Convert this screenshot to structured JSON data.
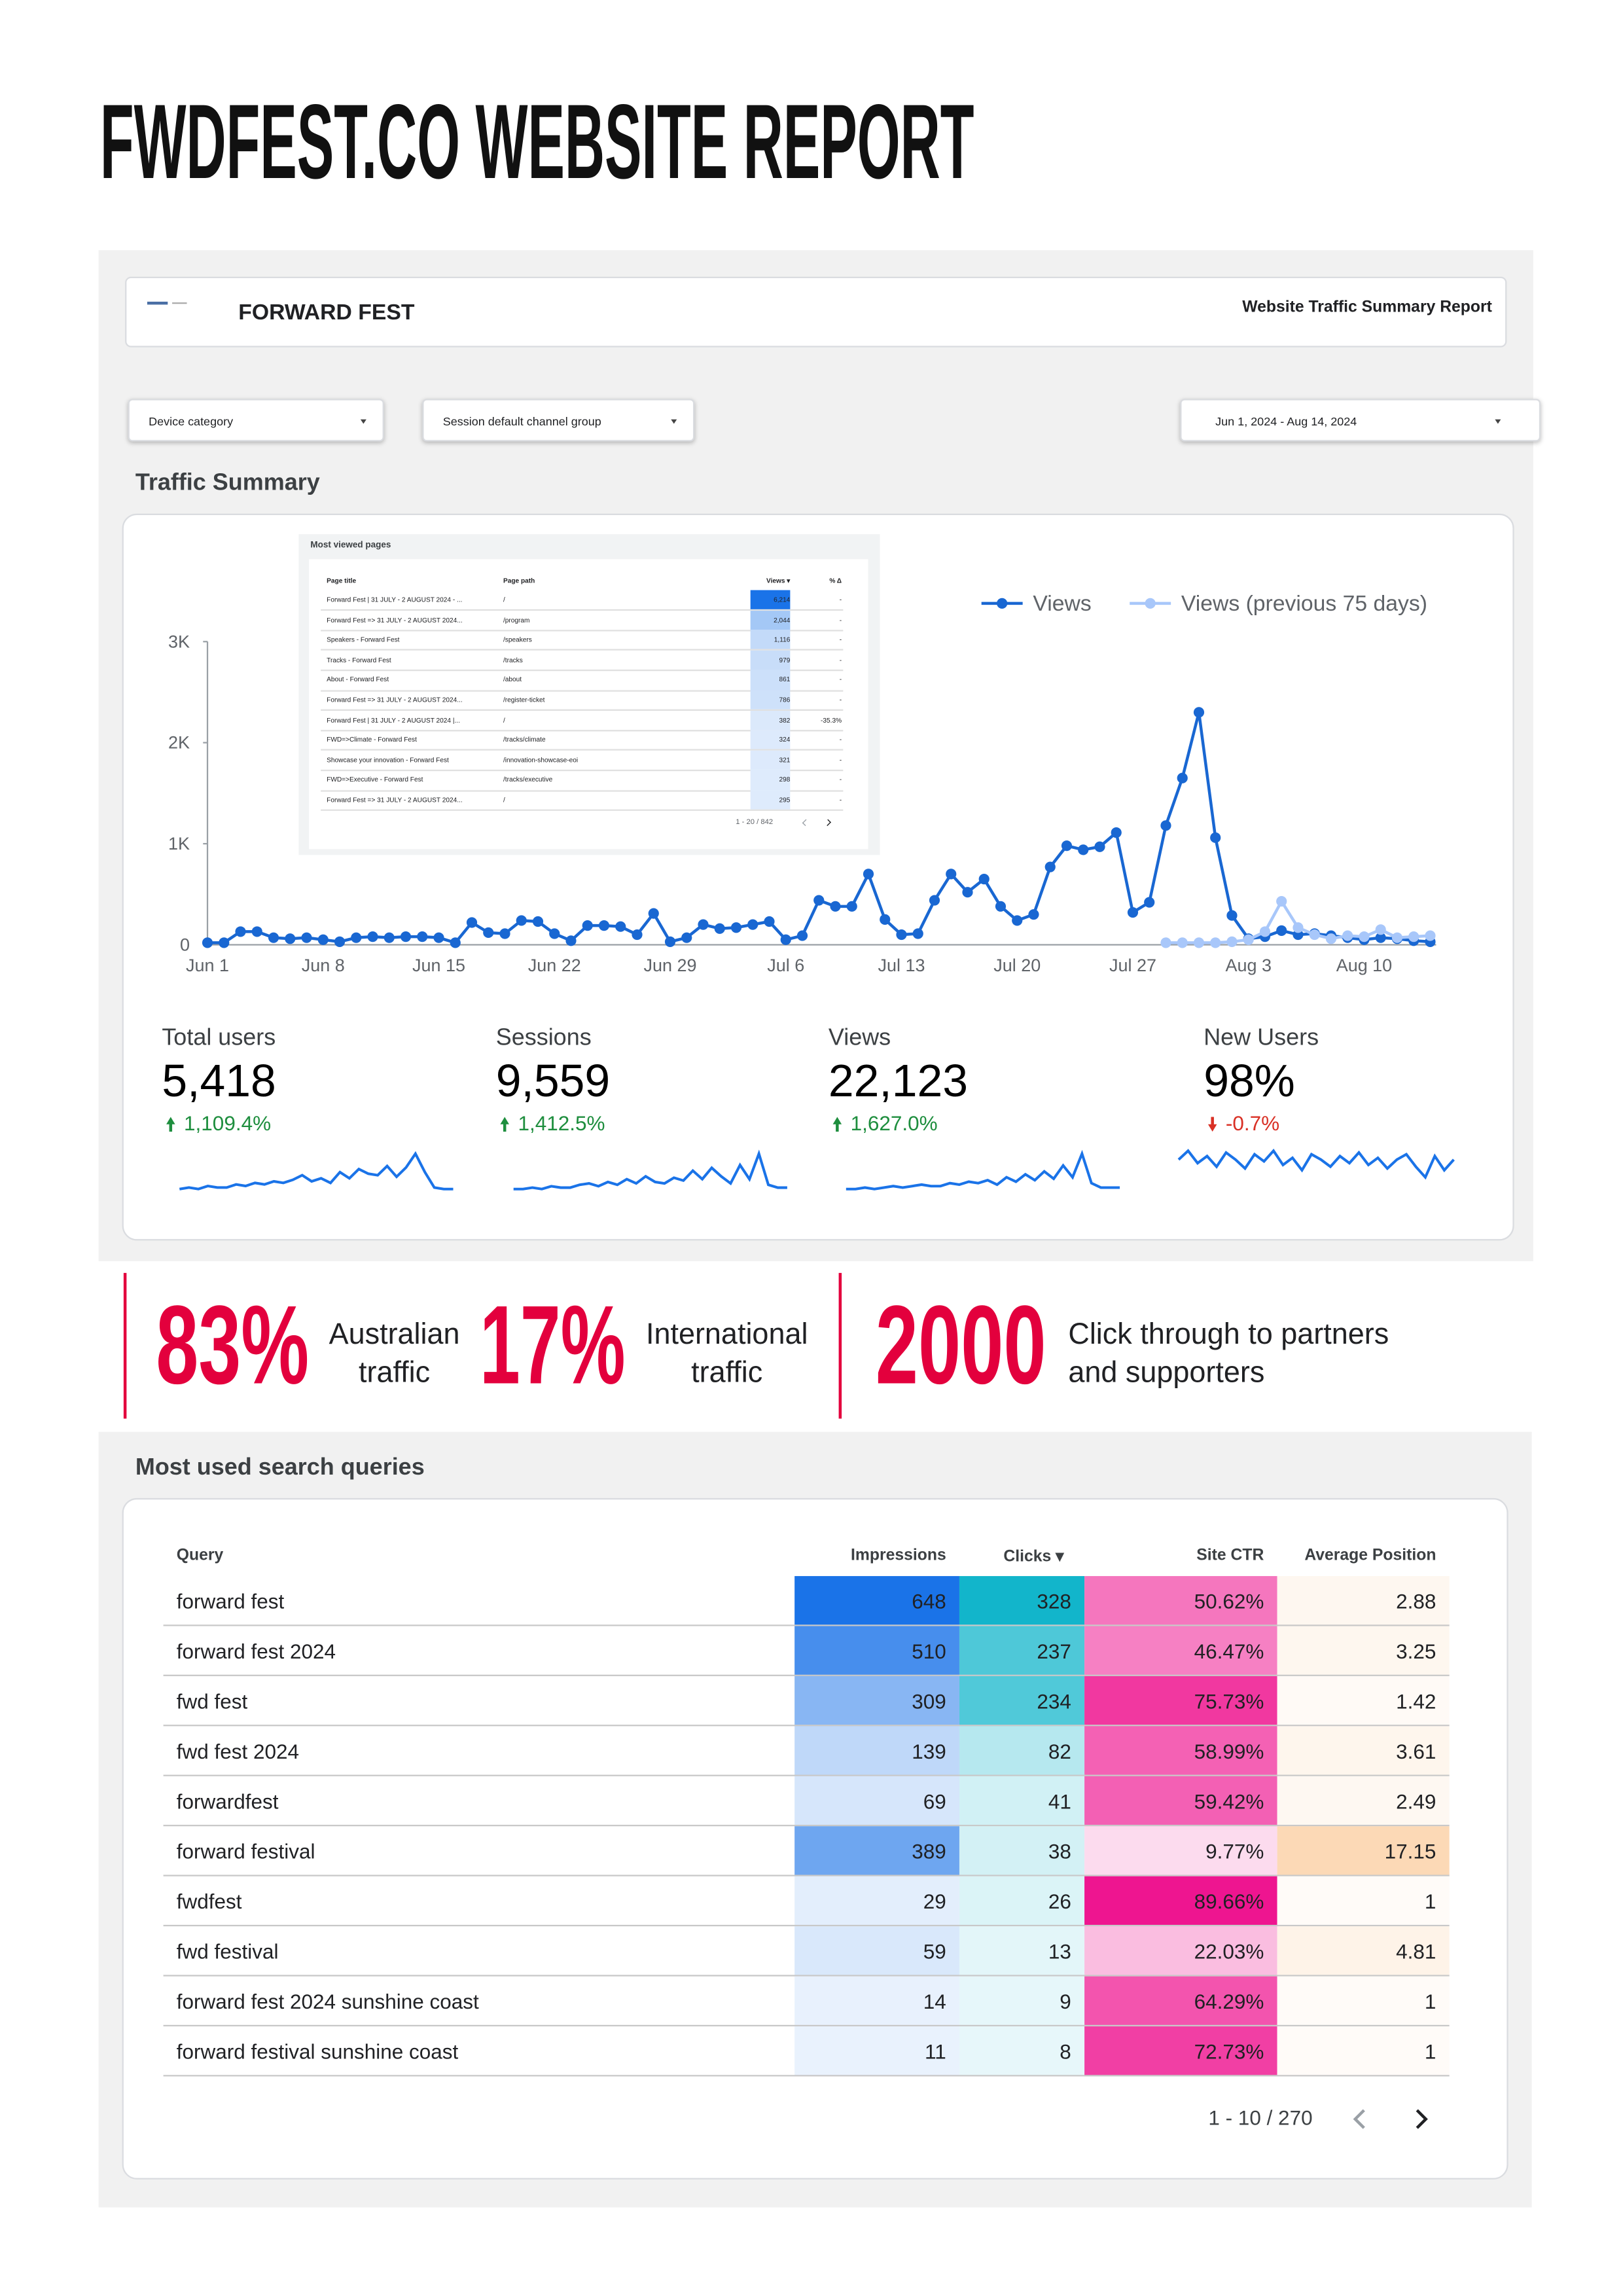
{
  "header": {
    "title": "FWDFEST.CO WEBSITE REPORT"
  },
  "dashboard": {
    "brand": "FORWARD FEST",
    "report_title": "Website Traffic Summary Report",
    "filters": [
      "Device category",
      "Session default channel group"
    ],
    "date_range": "Jun 1, 2024 - Aug 14, 2024",
    "section_title": "Traffic Summary"
  },
  "most_viewed_pages": {
    "title": "Most viewed pages",
    "columns": [
      "Page title",
      "Page path",
      "Views ▾",
      "% Δ"
    ],
    "rows": [
      [
        "Forward Fest | 31 JULY - 2 AUGUST 2024 - ...",
        "/",
        "6,214",
        "-"
      ],
      [
        "Forward Fest => 31 JULY - 2 AUGUST 2024...",
        "/program",
        "2,044",
        "-"
      ],
      [
        "Speakers - Forward Fest",
        "/speakers",
        "1,116",
        "-"
      ],
      [
        "Tracks - Forward Fest",
        "/tracks",
        "979",
        "-"
      ],
      [
        "About - Forward Fest",
        "/about",
        "861",
        "-"
      ],
      [
        "Forward Fest => 31 JULY - 2 AUGUST 2024...",
        "/register-ticket",
        "786",
        "-"
      ],
      [
        "Forward Fest | 31 JULY - 2 AUGUST 2024 |...",
        "/",
        "382",
        "-35.3%"
      ],
      [
        "FWD=>Climate - Forward Fest",
        "/tracks/climate",
        "324",
        "-"
      ],
      [
        "Showcase your innovation - Forward Fest",
        "/innovation-showcase-eoi",
        "321",
        "-"
      ],
      [
        "FWD=>Executive - Forward Fest",
        "/tracks/executive",
        "298",
        "-"
      ],
      [
        "Forward Fest => 31 JULY - 2 AUGUST 2024...",
        "/",
        "295",
        "-"
      ]
    ],
    "pagination": "1 - 20 / 842"
  },
  "chart_data": {
    "type": "line",
    "categories": [
      "Jun 1",
      null,
      null,
      null,
      null,
      null,
      null,
      "Jun 8",
      null,
      null,
      null,
      null,
      null,
      null,
      "Jun 15",
      null,
      null,
      null,
      null,
      null,
      null,
      "Jun 22",
      null,
      null,
      null,
      null,
      null,
      null,
      "Jun 29",
      null,
      null,
      null,
      null,
      null,
      null,
      "Jul 6",
      null,
      null,
      null,
      null,
      null,
      null,
      "Jul 13",
      null,
      null,
      null,
      null,
      null,
      null,
      "Jul 20",
      null,
      null,
      null,
      null,
      null,
      null,
      "Jul 27",
      null,
      null,
      null,
      null,
      null,
      null,
      "Aug 3",
      null,
      null,
      null,
      null,
      null,
      null,
      "Aug 10",
      null,
      null,
      null,
      null
    ],
    "series": [
      {
        "name": "Views",
        "color": "#1967d2",
        "values": [
          20,
          20,
          130,
          130,
          70,
          60,
          70,
          50,
          30,
          70,
          80,
          70,
          80,
          80,
          70,
          20,
          220,
          120,
          110,
          240,
          230,
          110,
          40,
          190,
          190,
          180,
          100,
          310,
          30,
          70,
          200,
          160,
          170,
          200,
          230,
          50,
          90,
          440,
          380,
          380,
          700,
          250,
          100,
          110,
          440,
          700,
          520,
          650,
          380,
          240,
          300,
          770,
          980,
          940,
          970,
          1110,
          320,
          420,
          1180,
          1650,
          2300,
          1060,
          290,
          60,
          80,
          140,
          100,
          110,
          90,
          70,
          50,
          70,
          60,
          40,
          30
        ]
      },
      {
        "name": "Views (previous 75 days)",
        "color": "#a8c7fa",
        "values": [
          null,
          null,
          null,
          null,
          null,
          null,
          null,
          null,
          null,
          null,
          null,
          null,
          null,
          null,
          null,
          null,
          null,
          null,
          null,
          null,
          null,
          null,
          null,
          null,
          null,
          null,
          null,
          null,
          null,
          null,
          null,
          null,
          null,
          null,
          null,
          null,
          null,
          null,
          null,
          null,
          null,
          null,
          null,
          null,
          null,
          null,
          null,
          null,
          null,
          null,
          null,
          null,
          null,
          null,
          null,
          null,
          null,
          null,
          20,
          20,
          20,
          20,
          30,
          50,
          130,
          430,
          170,
          100,
          60,
          90,
          80,
          150,
          70,
          80,
          90
        ]
      }
    ],
    "ylim": [
      0,
      3000
    ],
    "yticks": [
      0,
      {
        "value": 1000,
        "label": "1K"
      },
      {
        "value": 2000,
        "label": "2K"
      },
      {
        "value": 3000,
        "label": "3K"
      }
    ],
    "grid": false,
    "legend": "top-right"
  },
  "scorecards": [
    {
      "label": "Total users",
      "value": "5,418",
      "change": "1,109.4%",
      "sparkline": [
        5,
        6,
        5,
        7,
        6,
        6,
        8,
        7,
        9,
        8,
        10,
        9,
        11,
        14,
        10,
        12,
        9,
        16,
        12,
        18,
        15,
        14,
        20,
        13,
        19,
        28,
        16,
        6,
        5,
        5
      ]
    },
    {
      "label": "Sessions",
      "value": "9,559",
      "change": "1,412.5%",
      "sparkline": [
        5,
        5,
        6,
        5,
        7,
        6,
        6,
        8,
        9,
        7,
        10,
        8,
        12,
        9,
        14,
        10,
        9,
        13,
        11,
        18,
        12,
        20,
        14,
        9,
        22,
        12,
        30,
        8,
        6,
        6
      ]
    },
    {
      "label": "Views",
      "value": "22,123",
      "change": "1,627.0%",
      "sparkline": [
        4,
        4,
        5,
        4,
        5,
        6,
        5,
        6,
        7,
        6,
        6,
        8,
        7,
        9,
        8,
        10,
        7,
        12,
        9,
        14,
        10,
        16,
        11,
        20,
        12,
        28,
        8,
        5,
        5,
        5
      ]
    },
    {
      "label": "New Users",
      "value": "98%",
      "change": "-0.7%",
      "sparkline": [
        70,
        75,
        68,
        72,
        66,
        74,
        70,
        65,
        73,
        69,
        75,
        67,
        71,
        64,
        73,
        70,
        66,
        72,
        68,
        74,
        67,
        71,
        65,
        70,
        73,
        66,
        60,
        72,
        64,
        70
      ]
    }
  ],
  "highlights": [
    {
      "value": "83%",
      "label": "Australian traffic"
    },
    {
      "value": "17%",
      "label": "International traffic"
    },
    {
      "value": "2000",
      "label": "Click through to partners and supporters"
    }
  ],
  "search_queries": {
    "title": "Most used search queries",
    "columns": [
      "Query",
      "Impressions",
      "Clicks ▾",
      "Site CTR",
      "Average Position"
    ],
    "rows": [
      [
        "forward fest",
        "648",
        "328",
        "50.62%",
        "2.88"
      ],
      [
        "forward fest 2024",
        "510",
        "237",
        "46.47%",
        "3.25"
      ],
      [
        "fwd fest",
        "309",
        "234",
        "75.73%",
        "1.42"
      ],
      [
        "fwd fest 2024",
        "139",
        "82",
        "58.99%",
        "3.61"
      ],
      [
        "forwardfest",
        "69",
        "41",
        "59.42%",
        "2.49"
      ],
      [
        "forward festival",
        "389",
        "38",
        "9.77%",
        "17.15"
      ],
      [
        "fwdfest",
        "29",
        "26",
        "89.66%",
        "1"
      ],
      [
        "fwd festival",
        "59",
        "13",
        "22.03%",
        "4.81"
      ],
      [
        "forward fest 2024 sunshine coast",
        "14",
        "9",
        "64.29%",
        "1"
      ],
      [
        "forward festival sunshine coast",
        "11",
        "8",
        "72.73%",
        "1"
      ]
    ],
    "pagination": "1 - 10 / 270"
  }
}
